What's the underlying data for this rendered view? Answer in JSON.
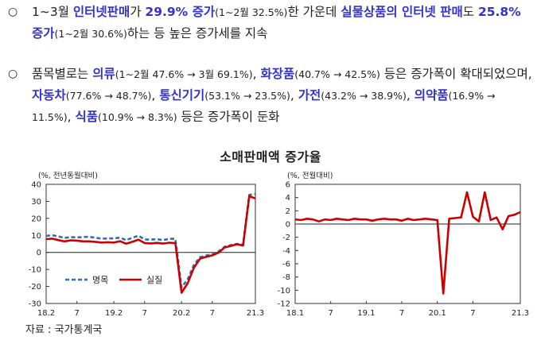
{
  "para1": {
    "bullet": "○",
    "segments": [
      {
        "t": "1∼3월 ",
        "c": ""
      },
      {
        "t": "인터넷판매",
        "c": "hl"
      },
      {
        "t": "가 ",
        "c": ""
      },
      {
        "t": "29.9% 증가",
        "c": "hl"
      },
      {
        "t": "(1∼2월 32.5%)",
        "c": "small"
      },
      {
        "t": "한 가운데 ",
        "c": ""
      },
      {
        "t": "실물상품의 인터넷 판매",
        "c": "hl"
      },
      {
        "t": "도 ",
        "c": ""
      },
      {
        "t": "25.8% 증가",
        "c": "hl"
      },
      {
        "t": "(1∼2월 30.6%)",
        "c": "small"
      },
      {
        "t": "하는 등 높은 증가세를 지속",
        "c": ""
      }
    ]
  },
  "para2": {
    "bullet": "○",
    "segments": [
      {
        "t": "품목별로는 ",
        "c": ""
      },
      {
        "t": "의류",
        "c": "hl"
      },
      {
        "t": "(1∼2월 47.6% → 3월 69.1%)",
        "c": "small"
      },
      {
        "t": ", ",
        "c": ""
      },
      {
        "t": "화장품",
        "c": "hl"
      },
      {
        "t": "(40.7% → 42.5%)",
        "c": "small"
      },
      {
        "t": " 등은 증가폭이 확대되었으며, ",
        "c": ""
      },
      {
        "t": "자동차",
        "c": "hl"
      },
      {
        "t": "(77.6% → 48.7%)",
        "c": "small"
      },
      {
        "t": ", ",
        "c": ""
      },
      {
        "t": "통신기기",
        "c": "hl"
      },
      {
        "t": "(53.1% → 23.5%)",
        "c": "small"
      },
      {
        "t": ", ",
        "c": ""
      },
      {
        "t": "가전",
        "c": "hl"
      },
      {
        "t": "(43.2% → 38.9%)",
        "c": "small"
      },
      {
        "t": ", ",
        "c": ""
      },
      {
        "t": "의약품",
        "c": "hl"
      },
      {
        "t": "(16.9% → 11.5%)",
        "c": "small"
      },
      {
        "t": ", ",
        "c": ""
      },
      {
        "t": "식품",
        "c": "hl"
      },
      {
        "t": "(10.9% → 8.3%)",
        "c": "small"
      },
      {
        "t": " 등은 증가폭이 둔화",
        "c": ""
      }
    ]
  },
  "figure_title": "소매판매액 증가율",
  "source": "자료 : 국가통계국",
  "colors": {
    "highlight": "#3333cc",
    "nominal": "#2f6db5",
    "real": "#cc0000"
  },
  "chart_data": [
    {
      "type": "line",
      "unit_label": "(%, 전년동월대비)",
      "x_ticks": [
        "18.2",
        "7",
        "19.2",
        "7",
        "20.2",
        "7",
        "21.3"
      ],
      "y_ticks": [
        "40",
        "30",
        "20",
        "10",
        "0",
        "-10",
        "-20",
        "-30"
      ],
      "ylim": [
        -30,
        40
      ],
      "months": [
        "18.02",
        "18.03",
        "18.04",
        "18.05",
        "18.06",
        "18.07",
        "18.08",
        "18.09",
        "18.10",
        "18.11",
        "18.12",
        "19.02",
        "19.03",
        "19.04",
        "19.05",
        "19.06",
        "19.07",
        "19.08",
        "19.09",
        "19.10",
        "19.11",
        "19.12",
        "20.02",
        "20.03",
        "20.04",
        "20.05",
        "20.06",
        "20.07",
        "20.08",
        "20.09",
        "20.10",
        "20.11",
        "20.12",
        "21.02",
        "21.03"
      ],
      "series": [
        {
          "name": "명목",
          "style": "dashed",
          "values": [
            9.7,
            10.1,
            9.4,
            8.5,
            9.0,
            8.8,
            9.0,
            9.2,
            8.6,
            8.1,
            8.2,
            8.2,
            8.7,
            7.2,
            8.6,
            9.8,
            7.6,
            7.5,
            7.8,
            7.2,
            8.0,
            8.0,
            -20.5,
            -15.8,
            -7.5,
            -2.8,
            -1.8,
            -1.1,
            0.5,
            3.3,
            4.3,
            5.0,
            4.6,
            33.8,
            34.2
          ]
        },
        {
          "name": "실질",
          "style": "solid",
          "values": [
            7.8,
            8.1,
            7.2,
            6.5,
            7.1,
            6.9,
            6.5,
            6.5,
            6.2,
            5.8,
            6.0,
            5.8,
            6.6,
            5.1,
            6.2,
            7.5,
            5.5,
            5.3,
            5.6,
            5.2,
            5.7,
            5.5,
            -23.7,
            -18.1,
            -9.1,
            -3.7,
            -2.6,
            -1.7,
            -0.2,
            2.9,
            3.8,
            4.8,
            4.0,
            33.0,
            31.7
          ]
        }
      ],
      "legend": [
        "명목",
        "실질"
      ]
    },
    {
      "type": "line",
      "unit_label": "(%, 전월대비)",
      "x_ticks": [
        "18.1",
        "7",
        "19.1",
        "7",
        "20.1",
        "7",
        "21.3"
      ],
      "y_ticks": [
        "6",
        "4",
        "2",
        "0",
        "-2",
        "-4",
        "-6",
        "-8",
        "-10",
        "-12"
      ],
      "ylim": [
        -12,
        6
      ],
      "months": [
        "18.01",
        "18.02",
        "18.03",
        "18.04",
        "18.05",
        "18.06",
        "18.07",
        "18.08",
        "18.09",
        "18.10",
        "18.11",
        "18.12",
        "19.01",
        "19.02",
        "19.03",
        "19.04",
        "19.05",
        "19.06",
        "19.07",
        "19.08",
        "19.09",
        "19.10",
        "19.11",
        "19.12",
        "20.01",
        "20.02",
        "20.03",
        "20.04",
        "20.05",
        "20.06",
        "20.07",
        "20.08",
        "20.09",
        "20.10",
        "20.11",
        "20.12",
        "21.01",
        "21.02",
        "21.03"
      ],
      "series": [
        {
          "name": "",
          "style": "solid",
          "values": [
            0.7,
            0.6,
            0.8,
            0.7,
            0.4,
            0.7,
            0.6,
            0.8,
            0.7,
            0.6,
            0.8,
            0.7,
            0.7,
            0.5,
            0.7,
            0.8,
            0.7,
            0.7,
            0.5,
            0.8,
            0.6,
            0.7,
            0.8,
            0.7,
            0.6,
            -10.5,
            0.8,
            0.9,
            1.0,
            4.8,
            1.1,
            0.4,
            4.8,
            0.6,
            1.0,
            -0.8,
            1.2,
            1.4,
            1.8
          ]
        }
      ]
    }
  ]
}
